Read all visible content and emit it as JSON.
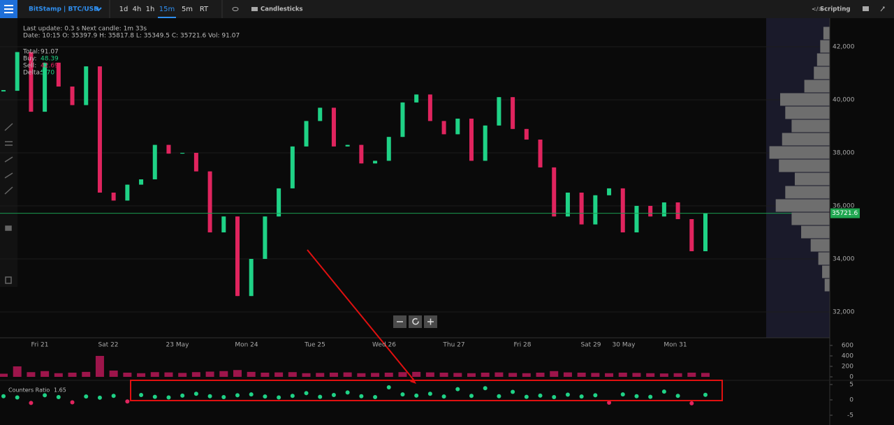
{
  "toolbar": {
    "symbol": "BitStamp | BTC/USD",
    "timeframes": [
      "1d",
      "4h",
      "1h",
      "15m",
      "5m",
      "RT"
    ],
    "active_timeframe": "15m",
    "chart_type": "Candlesticks",
    "scripting": "Scripting"
  },
  "info": {
    "update": "Last update: 0.3 s   Next candle: 1m 33s",
    "ohlc": "Date: 10:15  O: 35397.9  H: 35817.8  L: 35349.5  C: 35721.6  Vol: 91.07",
    "totals": [
      {
        "label": "Total:",
        "value": "91.07"
      },
      {
        "label": "Buy:",
        "value": "48.39"
      },
      {
        "label": "Sell:",
        "value": "42.69"
      },
      {
        "label": "Delta:",
        "value": "5.70"
      }
    ]
  },
  "chart_data": [
    {
      "type": "candlestick",
      "up_color": "#1fd286",
      "down_color": "#e0245e",
      "ylim": [
        31026,
        43079
      ],
      "yticks": [
        {
          "value": 32000,
          "label": "32,000"
        },
        {
          "value": 34000,
          "label": "34,000"
        },
        {
          "value": 36000,
          "label": "36,000"
        },
        {
          "value": 38000,
          "label": "38,000"
        },
        {
          "value": 40000,
          "label": "40,000"
        },
        {
          "value": 42000,
          "label": "42,000"
        }
      ],
      "x_labels": [
        "Fri 21",
        "Sat 22",
        "23 May",
        "Mon 24",
        "Tue 25",
        "Wed 26",
        "Thu 27",
        "Fri 28",
        "Sat 29",
        "30 May",
        "Mon 31"
      ],
      "values": [
        40340,
        41800,
        39550,
        41400,
        40500,
        39800,
        41260,
        36500,
        36200,
        36800,
        37000,
        38300,
        37970,
        38000,
        37300,
        35000,
        35600,
        32600,
        34000,
        35600,
        36660,
        38240,
        39200,
        39700,
        38240,
        38300,
        37600,
        37700,
        38600,
        39900,
        40200,
        39200,
        38700,
        39290,
        37700,
        39030,
        40100,
        38900,
        38500,
        37450,
        35600,
        36500,
        35300,
        36400,
        36660,
        35000,
        36000,
        35600,
        36130,
        35500,
        34290,
        35721.6
      ]
    },
    {
      "type": "profile",
      "color": "#6e6e6e",
      "ylim": [
        31026,
        43079
      ],
      "xlim": [
        0,
        100
      ],
      "levels": [
        33000,
        33500,
        34000,
        34500,
        35000,
        35500,
        36000,
        36500,
        37000,
        37500,
        38000,
        38500,
        39000,
        39500,
        40000,
        40500,
        41000,
        41500,
        42000,
        42500
      ],
      "values": [
        8,
        12,
        18,
        30,
        45,
        60,
        85,
        70,
        55,
        80,
        95,
        75,
        60,
        70,
        78,
        40,
        25,
        20,
        15,
        10
      ]
    },
    {
      "type": "bar",
      "color": "#c2185b",
      "ylim": [
        0,
        733
      ],
      "yticks": [
        0,
        200,
        400,
        600
      ],
      "values": [
        60,
        200,
        90,
        110,
        70,
        80,
        95,
        400,
        120,
        80,
        70,
        90,
        85,
        75,
        90,
        100,
        110,
        130,
        95,
        80,
        85,
        90,
        70,
        75,
        80,
        85,
        70,
        75,
        80,
        90,
        95,
        85,
        80,
        75,
        70,
        80,
        85,
        75,
        70,
        80,
        110,
        85,
        80,
        75,
        70,
        80,
        75,
        70,
        65,
        70,
        80,
        75
      ]
    },
    {
      "type": "dots",
      "title": "Counters Ratio",
      "up_color": "#1fd286",
      "down_color": "#e0245e",
      "ylim": [
        -7.27,
        6.36
      ],
      "yticks": [
        5,
        0,
        -5
      ],
      "values": [
        1.2,
        0.8,
        -1,
        1.5,
        0.9,
        -0.8,
        1.1,
        0.7,
        1.3,
        -0.5,
        1.6,
        1.0,
        0.8,
        1.4,
        2.0,
        1.2,
        0.9,
        1.5,
        1.8,
        1.1,
        0.8,
        1.3,
        2.2,
        1.0,
        1.6,
        2.4,
        1.2,
        0.9,
        4.1,
        1.8,
        1.4,
        2.0,
        1.1,
        3.5,
        1.3,
        3.8,
        1.2,
        2.6,
        1.0,
        1.4,
        0.9,
        1.7,
        1.1,
        1.5,
        -0.9,
        1.8,
        1.2,
        1.0,
        2.7,
        1.3,
        -1.1,
        1.65
      ]
    }
  ]
}
